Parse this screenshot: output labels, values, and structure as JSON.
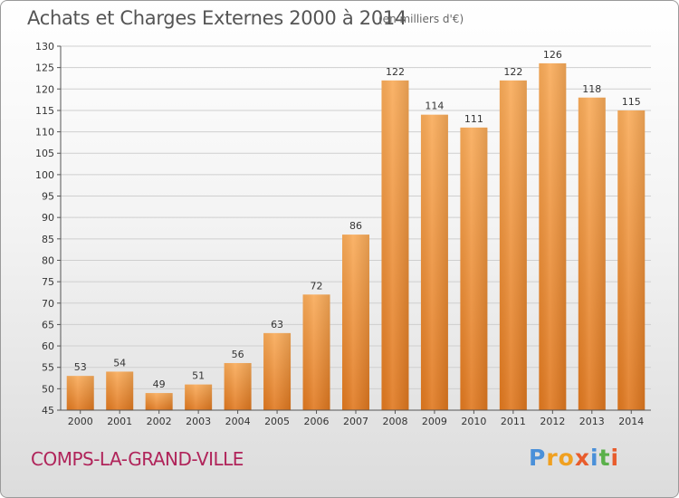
{
  "title": "Achats et Charges Externes 2000 à 2014",
  "subtitle": "(en milliers d'€)",
  "town": "COMPS-LA-GRAND-VILLE",
  "brand": {
    "letters": [
      "P",
      "r",
      "o",
      "x",
      "i",
      "t",
      "i"
    ],
    "colors": [
      "#4a90d9",
      "#f0a020",
      "#f0a020",
      "#e85c2c",
      "#4a90d9",
      "#5ab04a",
      "#e85c2c"
    ]
  },
  "colors": {
    "bar_light": "#f9ab59",
    "bar_dark": "#e0781f",
    "grid": "#cfcfcf"
  },
  "chart_data": {
    "type": "bar",
    "categories": [
      "2000",
      "2001",
      "2002",
      "2003",
      "2004",
      "2005",
      "2006",
      "2007",
      "2008",
      "2009",
      "2010",
      "2011",
      "2012",
      "2013",
      "2014"
    ],
    "values": [
      53,
      54,
      49,
      51,
      56,
      63,
      72,
      86,
      122,
      114,
      111,
      122,
      126,
      118,
      115
    ],
    "ylim": [
      45,
      130
    ],
    "yticks": [
      45,
      50,
      55,
      60,
      65,
      70,
      75,
      80,
      85,
      90,
      95,
      100,
      105,
      110,
      115,
      120,
      125,
      130
    ],
    "grid": true,
    "legend": "none"
  }
}
